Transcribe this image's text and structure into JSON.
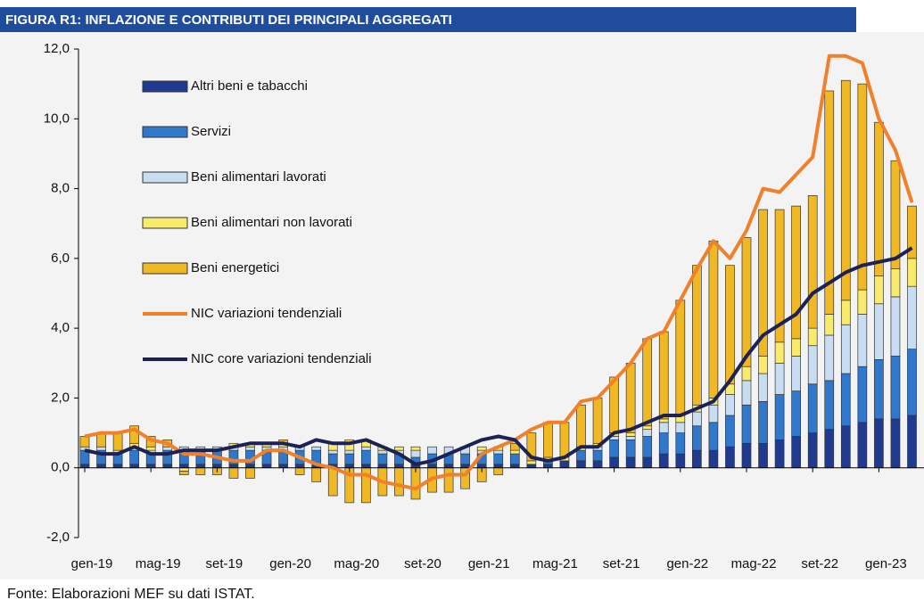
{
  "chart_data": {
    "type": "bar",
    "title": "FIGURA R1: INFLAZIONE E CONTRIBUTI DEI PRINCIPALI AGGREGATI",
    "source": "Fonte: Elaborazioni MEF su dati ISTAT.",
    "categories": [
      "gen-19",
      null,
      null,
      null,
      "mag-19",
      null,
      null,
      null,
      "set-19",
      null,
      null,
      null,
      "gen-20",
      null,
      null,
      null,
      "mag-20",
      null,
      null,
      null,
      "set-20",
      null,
      null,
      null,
      "gen-21",
      null,
      null,
      null,
      "mag-21",
      null,
      null,
      null,
      "set-21",
      null,
      null,
      null,
      "gen-22",
      null,
      null,
      null,
      "mag-22",
      null,
      null,
      null,
      "set-22",
      null,
      null,
      null,
      "gen-23",
      null,
      null
    ],
    "ylim": [
      -2,
      12
    ],
    "yticks": [
      {
        "value": -2,
        "label": "-2,0"
      },
      {
        "value": 0,
        "label": "0,0"
      },
      {
        "value": 2,
        "label": "2,0"
      },
      {
        "value": 4,
        "label": "4,0"
      },
      {
        "value": 6,
        "label": "6,0"
      },
      {
        "value": 8,
        "label": "8,0"
      },
      {
        "value": 10,
        "label": "10,0"
      },
      {
        "value": 12,
        "label": "12,0"
      }
    ],
    "series": [
      {
        "name": "Altri beni e tabacchi",
        "type": "bar",
        "color": "#1f3a8f",
        "values": [
          0.1,
          0.1,
          0.1,
          0.1,
          0.1,
          0.1,
          0.1,
          0.1,
          0.1,
          0.1,
          0.1,
          0.1,
          0.1,
          0.1,
          0.1,
          0.1,
          0.1,
          0.1,
          0.1,
          0.1,
          0.1,
          0.1,
          0.1,
          0.1,
          0.1,
          0.1,
          0.1,
          0.1,
          0.1,
          0.2,
          0.2,
          0.2,
          0.3,
          0.3,
          0.3,
          0.4,
          0.4,
          0.5,
          0.5,
          0.6,
          0.7,
          0.7,
          0.8,
          0.9,
          1.0,
          1.1,
          1.2,
          1.3,
          1.4,
          1.4,
          1.5
        ]
      },
      {
        "name": "Servizi",
        "type": "bar",
        "color": "#2f78cc",
        "values": [
          0.4,
          0.4,
          0.3,
          0.4,
          0.3,
          0.4,
          0.4,
          0.4,
          0.4,
          0.4,
          0.4,
          0.4,
          0.4,
          0.4,
          0.4,
          0.3,
          0.3,
          0.4,
          0.3,
          0.3,
          0.2,
          0.3,
          0.3,
          0.3,
          0.3,
          0.3,
          0.3,
          0.0,
          0.1,
          0.0,
          0.3,
          0.3,
          0.5,
          0.5,
          0.6,
          0.6,
          0.6,
          0.7,
          0.8,
          0.9,
          1.1,
          1.2,
          1.3,
          1.3,
          1.4,
          1.4,
          1.5,
          1.6,
          1.7,
          1.8,
          1.9
        ]
      },
      {
        "name": "Beni alimentari lavorati",
        "type": "bar",
        "color": "#c8ddf2",
        "values": [
          0.1,
          0.1,
          0.1,
          0.1,
          0.1,
          0.1,
          0.1,
          0.1,
          0.1,
          0.1,
          0.1,
          0.1,
          0.1,
          0.1,
          0.1,
          0.1,
          0.1,
          0.1,
          0.1,
          0.1,
          0.2,
          0.2,
          0.2,
          0.2,
          0.1,
          0.1,
          0.0,
          0.0,
          0.0,
          0.0,
          0.0,
          0.1,
          0.1,
          0.1,
          0.2,
          0.3,
          0.3,
          0.4,
          0.5,
          0.6,
          0.7,
          0.8,
          0.9,
          1.0,
          1.1,
          1.3,
          1.4,
          1.5,
          1.6,
          1.7,
          1.8
        ]
      },
      {
        "name": "Beni alimentari non lavorati",
        "type": "bar",
        "color": "#f8ea6c",
        "values": [
          0.0,
          0.0,
          0.0,
          0.1,
          0.1,
          0.0,
          -0.1,
          0.0,
          0.0,
          0.1,
          0.1,
          0.1,
          0.1,
          0.0,
          0.0,
          0.2,
          0.3,
          0.2,
          0.1,
          0.1,
          0.1,
          0.0,
          0.0,
          0.0,
          0.1,
          0.1,
          0.1,
          0.1,
          0.1,
          0.1,
          0.1,
          0.1,
          0.1,
          0.1,
          0.1,
          0.1,
          0.2,
          0.2,
          0.2,
          0.3,
          0.4,
          0.5,
          0.6,
          0.5,
          0.5,
          0.6,
          0.7,
          0.7,
          0.8,
          0.8,
          0.8
        ]
      },
      {
        "name": "Beni energetici",
        "type": "bar",
        "color": "#f0b824",
        "values": [
          0.3,
          0.4,
          0.5,
          0.5,
          0.3,
          0.2,
          -0.1,
          -0.2,
          -0.2,
          -0.3,
          -0.3,
          0.0,
          0.1,
          -0.2,
          -0.4,
          -0.8,
          -1.0,
          -1.0,
          -0.8,
          -0.8,
          -0.9,
          -0.7,
          -0.7,
          -0.6,
          -0.4,
          -0.2,
          0.2,
          0.8,
          1.0,
          1.0,
          1.2,
          1.3,
          1.6,
          2.0,
          2.5,
          2.5,
          3.3,
          4.0,
          4.5,
          3.4,
          3.7,
          4.2,
          3.8,
          3.8,
          3.8,
          6.4,
          6.3,
          5.9,
          4.4,
          3.1,
          1.5
        ]
      },
      {
        "name": "NIC variazioni tendenziali",
        "type": "line",
        "color": "#f0802a",
        "values": [
          0.9,
          1.0,
          1.0,
          1.1,
          0.8,
          0.7,
          0.4,
          0.4,
          0.3,
          0.2,
          0.2,
          0.5,
          0.5,
          0.3,
          0.1,
          0.0,
          -0.2,
          -0.2,
          -0.4,
          -0.5,
          -0.6,
          -0.3,
          -0.2,
          -0.2,
          0.4,
          0.6,
          0.8,
          1.1,
          1.3,
          1.3,
          1.9,
          2.0,
          2.5,
          3.0,
          3.7,
          3.9,
          4.8,
          5.7,
          6.5,
          6.0,
          6.8,
          8.0,
          7.9,
          8.4,
          8.9,
          11.8,
          11.8,
          11.6,
          10.0,
          9.1,
          7.6
        ]
      },
      {
        "name": "NIC core variazioni tendenziali",
        "type": "line",
        "color": "#1c2255",
        "values": [
          0.5,
          0.4,
          0.4,
          0.6,
          0.4,
          0.4,
          0.5,
          0.5,
          0.5,
          0.6,
          0.7,
          0.7,
          0.7,
          0.6,
          0.8,
          0.7,
          0.7,
          0.8,
          0.6,
          0.4,
          0.1,
          0.2,
          0.4,
          0.6,
          0.8,
          0.9,
          0.8,
          0.3,
          0.2,
          0.3,
          0.6,
          0.6,
          1.0,
          1.1,
          1.3,
          1.5,
          1.5,
          1.7,
          1.9,
          2.5,
          3.2,
          3.8,
          4.1,
          4.4,
          5.0,
          5.3,
          5.6,
          5.8,
          5.9,
          6.0,
          6.3
        ]
      }
    ]
  }
}
